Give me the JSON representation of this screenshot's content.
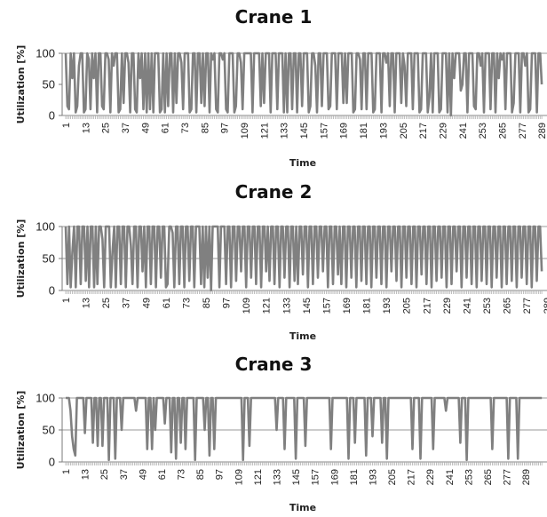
{
  "chart_data": [
    {
      "type": "line",
      "title": "Crane 1",
      "xlabel": "Time",
      "ylabel": "Utilization [%]",
      "ylim": [
        0,
        100
      ],
      "yticks": [
        "0",
        "50",
        "100"
      ],
      "xticks": [
        "1",
        "13",
        "25",
        "37",
        "49",
        "61",
        "73",
        "85",
        "97",
        "109",
        "121",
        "133",
        "145",
        "157",
        "169",
        "181",
        "193",
        "205",
        "217",
        "229",
        "241",
        "253",
        "265",
        "277",
        "289"
      ],
      "color": "#808080",
      "gridlines": [
        100
      ],
      "series": [
        {
          "values": [
            100,
            15,
            10,
            100,
            60,
            100,
            5,
            15,
            80,
            100,
            100,
            5,
            10,
            100,
            90,
            10,
            100,
            60,
            100,
            5,
            100,
            100,
            15,
            10,
            100,
            100,
            90,
            5,
            100,
            80,
            100,
            100,
            5,
            10,
            100,
            20,
            100,
            100,
            85,
            5,
            100,
            100,
            10,
            5,
            100,
            60,
            100,
            10,
            100,
            5,
            100,
            10,
            100,
            5,
            100,
            100,
            100,
            5,
            10,
            100,
            5,
            100,
            15,
            100,
            100,
            5,
            100,
            20,
            100,
            100,
            85,
            10,
            100,
            100,
            100,
            5,
            10,
            100,
            100,
            5,
            100,
            100,
            20,
            100,
            15,
            100,
            100,
            5,
            100,
            90,
            100,
            10,
            5,
            100,
            100,
            90,
            100,
            10,
            5,
            100,
            100,
            100,
            5,
            15,
            100,
            100,
            85,
            10,
            100,
            100,
            100,
            100,
            100,
            5,
            100,
            100,
            100,
            100,
            15,
            100,
            20,
            100,
            100,
            100,
            5,
            100,
            100,
            100,
            10,
            100,
            100,
            100,
            5,
            100,
            5,
            100,
            100,
            10,
            100,
            100,
            5,
            100,
            100,
            15,
            100,
            100,
            100,
            5,
            15,
            100,
            100,
            80,
            5,
            100,
            100,
            15,
            100,
            100,
            100,
            10,
            15,
            100,
            100,
            100,
            10,
            100,
            100,
            100,
            20,
            100,
            20,
            100,
            100,
            100,
            5,
            10,
            100,
            100,
            90,
            10,
            100,
            100,
            10,
            100,
            100,
            100,
            5,
            10,
            100,
            100,
            100,
            5,
            100,
            100,
            85,
            100,
            15,
            100,
            100,
            5,
            100,
            100,
            100,
            20,
            100,
            80,
            15,
            100,
            100,
            100,
            10,
            100,
            100,
            100,
            5,
            10,
            100,
            100,
            100,
            5,
            30,
            100,
            5,
            100,
            100,
            100,
            5,
            10,
            100,
            100,
            100,
            5,
            100,
            0,
            100,
            60,
            100,
            100,
            100,
            40,
            50,
            100,
            100,
            5,
            100,
            100,
            100,
            15,
            10,
            100,
            100,
            80,
            100,
            5,
            100,
            100,
            100,
            10,
            100,
            100,
            5,
            100,
            60,
            100,
            90,
            100,
            10,
            100,
            100,
            100,
            5,
            20,
            100,
            100,
            100,
            5,
            100,
            100,
            80,
            100,
            5,
            10,
            100,
            100,
            100,
            5,
            100,
            100,
            50
          ]
        }
      ]
    },
    {
      "type": "line",
      "title": "Crane 2",
      "xlabel": "Time",
      "ylabel": "Utilization [%]",
      "ylim": [
        0,
        100
      ],
      "yticks": [
        "0",
        "50",
        "100"
      ],
      "xticks": [
        "1",
        "13",
        "25",
        "37",
        "49",
        "61",
        "73",
        "85",
        "97",
        "109",
        "121",
        "133",
        "145",
        "157",
        "169",
        "181",
        "193",
        "205",
        "217",
        "229",
        "241",
        "253",
        "265",
        "277",
        "289"
      ],
      "color": "#808080",
      "gridlines": [
        50,
        100
      ],
      "series": [
        {
          "values": [
            100,
            10,
            100,
            5,
            60,
            100,
            5,
            100,
            100,
            10,
            100,
            100,
            15,
            100,
            5,
            100,
            100,
            5,
            100,
            10,
            100,
            100,
            80,
            5,
            100,
            100,
            100,
            5,
            60,
            100,
            5,
            100,
            100,
            10,
            100,
            100,
            5,
            100,
            100,
            70,
            10,
            100,
            100,
            5,
            100,
            100,
            30,
            100,
            5,
            100,
            100,
            10,
            100,
            100,
            5,
            100,
            100,
            20,
            100,
            100,
            5,
            10,
            100,
            100,
            90,
            5,
            100,
            100,
            10,
            100,
            100,
            5,
            100,
            100,
            15,
            100,
            100,
            5,
            100,
            100,
            100,
            10,
            100,
            5,
            100,
            20,
            100,
            0,
            100,
            100,
            100,
            100,
            5,
            100,
            100,
            100,
            10,
            100,
            100,
            5,
            100,
            100,
            15,
            100,
            100,
            30,
            100,
            100,
            5,
            100,
            100,
            20,
            100,
            100,
            10,
            100,
            100,
            5,
            100,
            100,
            30,
            100,
            15,
            100,
            100,
            10,
            100,
            100,
            5,
            100,
            100,
            20,
            100,
            100,
            5,
            100,
            100,
            15,
            100,
            10,
            100,
            100,
            25,
            100,
            100,
            5,
            100,
            100,
            10,
            100,
            100,
            20,
            100,
            100,
            30,
            100,
            100,
            5,
            100,
            100,
            10,
            100,
            100,
            25,
            100,
            10,
            100,
            100,
            5,
            100,
            100,
            20,
            100,
            100,
            5,
            100,
            100,
            15,
            100,
            100,
            10,
            100,
            100,
            5,
            100,
            100,
            20,
            100,
            100,
            10,
            100,
            100,
            5,
            100,
            100,
            30,
            100,
            100,
            15,
            100,
            100,
            5,
            100,
            100,
            20,
            100,
            100,
            10,
            100,
            100,
            5,
            100,
            100,
            25,
            100,
            100,
            10,
            100,
            100,
            5,
            100,
            100,
            15,
            100,
            100,
            20,
            100,
            100,
            5,
            100,
            100,
            10,
            100,
            100,
            30,
            100,
            100,
            5,
            100,
            100,
            20,
            100,
            100,
            10,
            100,
            100,
            5,
            100,
            100,
            15,
            100,
            100,
            10,
            100,
            100,
            5,
            100,
            100,
            20,
            100,
            100,
            5,
            100,
            100,
            10,
            100,
            100,
            15,
            100,
            100,
            5,
            100,
            100,
            20,
            100,
            100,
            10,
            100,
            100,
            5,
            100,
            100,
            15,
            100,
            100,
            30
          ]
        }
      ]
    },
    {
      "type": "line",
      "title": "Crane 3",
      "xlabel": "Time",
      "ylabel": "Utilization [%]",
      "ylim": [
        0,
        100
      ],
      "yticks": [
        "0",
        "50",
        "100"
      ],
      "xticks": [
        "1",
        "13",
        "25",
        "37",
        "49",
        "61",
        "73",
        "85",
        "97",
        "109",
        "121",
        "133",
        "145",
        "157",
        "169",
        "181",
        "193",
        "205",
        "217",
        "229",
        "241",
        "253",
        "265",
        "277",
        "289"
      ],
      "color": "#808080",
      "gridlines": [
        50,
        100
      ],
      "series": [
        {
          "values": [
            100,
            100,
            100,
            80,
            40,
            20,
            10,
            100,
            100,
            100,
            100,
            100,
            45,
            100,
            100,
            100,
            100,
            30,
            100,
            100,
            25,
            100,
            100,
            25,
            100,
            100,
            100,
            3,
            100,
            100,
            100,
            5,
            100,
            100,
            100,
            50,
            100,
            100,
            100,
            100,
            100,
            100,
            100,
            100,
            80,
            100,
            100,
            100,
            100,
            100,
            100,
            20,
            100,
            100,
            20,
            100,
            50,
            100,
            100,
            100,
            100,
            100,
            60,
            100,
            100,
            100,
            15,
            100,
            100,
            5,
            100,
            100,
            30,
            100,
            100,
            20,
            100,
            100,
            100,
            100,
            100,
            3,
            100,
            100,
            100,
            100,
            100,
            50,
            100,
            100,
            10,
            100,
            100,
            20,
            100,
            100,
            100,
            100,
            100,
            100,
            100,
            100,
            100,
            100,
            100,
            100,
            100,
            100,
            100,
            100,
            100,
            3,
            100,
            100,
            100,
            25,
            100,
            100,
            100,
            100,
            100,
            100,
            100,
            100,
            100,
            100,
            100,
            100,
            100,
            100,
            100,
            100,
            50,
            100,
            100,
            100,
            100,
            20,
            100,
            100,
            100,
            100,
            100,
            100,
            5,
            100,
            100,
            100,
            100,
            100,
            25,
            100,
            100,
            100,
            100,
            100,
            100,
            100,
            100,
            100,
            100,
            100,
            100,
            100,
            100,
            100,
            20,
            100,
            100,
            100,
            100,
            100,
            100,
            100,
            100,
            100,
            100,
            5,
            100,
            100,
            100,
            30,
            100,
            100,
            100,
            100,
            100,
            100,
            10,
            100,
            100,
            100,
            40,
            100,
            100,
            100,
            100,
            100,
            30,
            100,
            100,
            5,
            100,
            100,
            100,
            100,
            100,
            100,
            100,
            100,
            100,
            100,
            100,
            100,
            100,
            100,
            100,
            20,
            100,
            100,
            100,
            100,
            5,
            100,
            100,
            100,
            100,
            100,
            100,
            100,
            20,
            100,
            100,
            100,
            100,
            100,
            100,
            100,
            80,
            100,
            100,
            100,
            100,
            100,
            100,
            100,
            100,
            30,
            100,
            100,
            100,
            3,
            100,
            100,
            100,
            100,
            100,
            100,
            100,
            100,
            100,
            100,
            100,
            100,
            100,
            100,
            100,
            20,
            100,
            100,
            100,
            100,
            100,
            100,
            100,
            100,
            100,
            5,
            100,
            100,
            100,
            100,
            100,
            5,
            100,
            100,
            100,
            100,
            100,
            100,
            100,
            100,
            100,
            100,
            100,
            100,
            100,
            100,
            100
          ]
        }
      ]
    }
  ]
}
